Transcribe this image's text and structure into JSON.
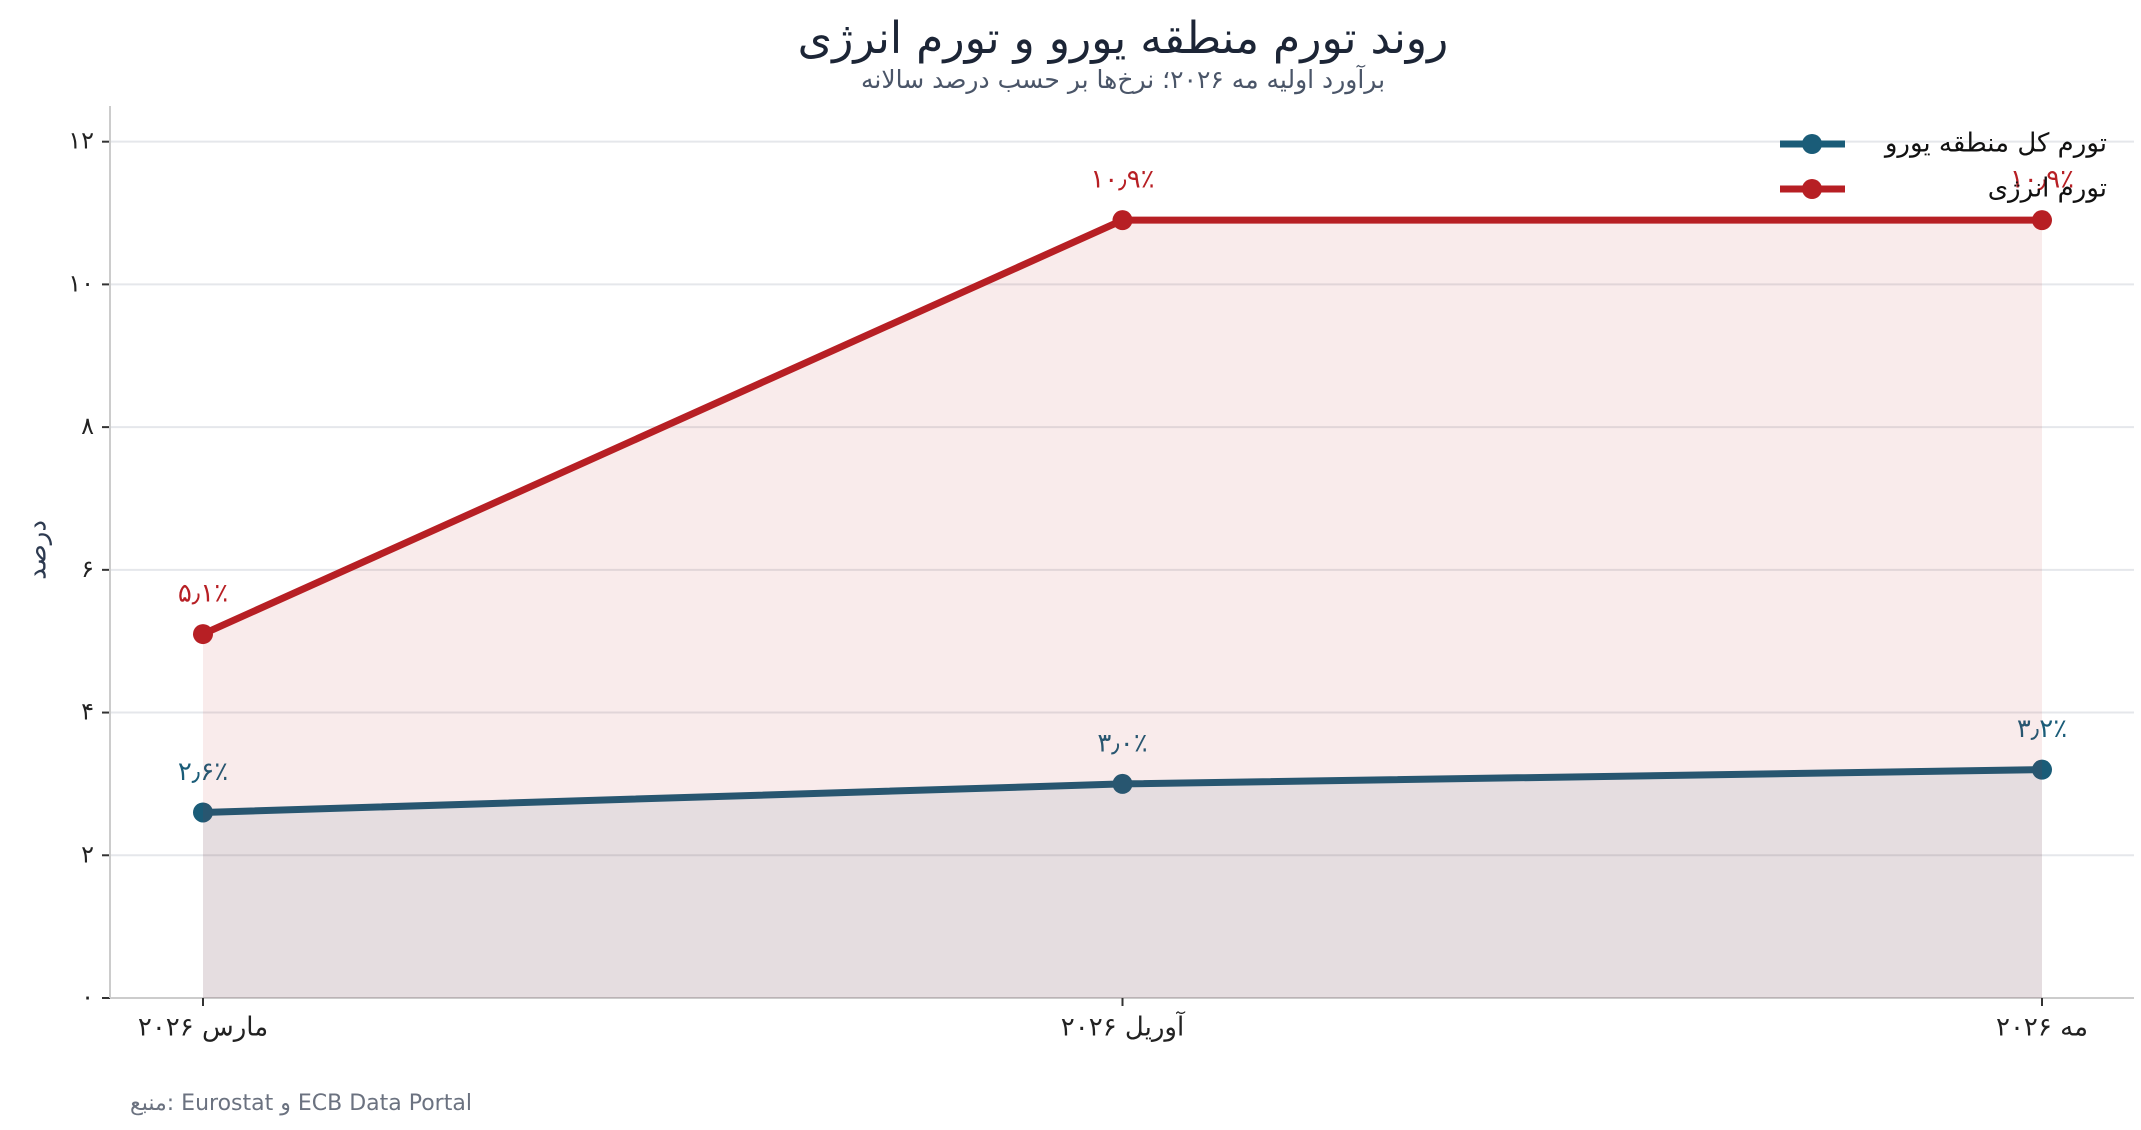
{
  "chart_data": {
    "type": "line",
    "title": "روند تورم منطقه یورو و تورم انرژی",
    "subtitle": "برآورد اولیه مه ۲۰۲۶؛ نرخ‌ها بر حسب درصد سالانه",
    "y_label": "درصد",
    "source": "منبع: Eurostat و ECB Data Portal",
    "categories": [
      "مارس ۲۰۲۶",
      "آوریل ۲۰۲۶",
      "مه ۲۰۲۶"
    ],
    "series": [
      {
        "name": "تورم کل منطقه یورو",
        "color": "#1a5c78",
        "values": [
          2.6,
          3.0,
          3.2
        ],
        "value_labels": [
          "۲٫۶٪",
          "۳٫۰٪",
          "۳٫۲٪"
        ]
      },
      {
        "name": "تورم انرژی",
        "color": "#b71f24",
        "values": [
          5.1,
          10.9,
          10.9
        ],
        "value_labels": [
          "۵٫۱٪",
          "۱۰٫۹٪",
          "۱۰٫۹٪"
        ]
      }
    ],
    "ylim": [
      0,
      12.5
    ],
    "yticks": [
      {
        "value": 0,
        "label": "۰"
      },
      {
        "value": 2,
        "label": "۲"
      },
      {
        "value": 4,
        "label": "۴"
      },
      {
        "value": 6,
        "label": "۶"
      },
      {
        "value": 8,
        "label": "۸"
      },
      {
        "value": 10,
        "label": "۱۰"
      },
      {
        "value": 12,
        "label": "۱۲"
      }
    ],
    "grid": true,
    "area_fill": true,
    "legend": "upper right"
  }
}
